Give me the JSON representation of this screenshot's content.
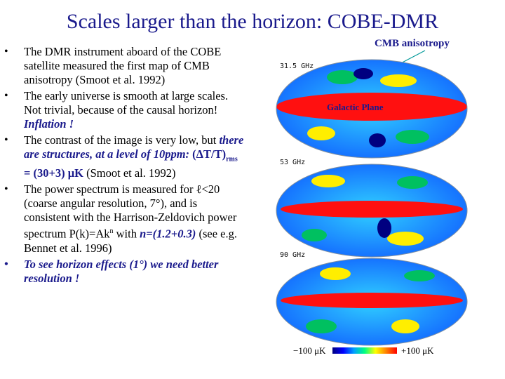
{
  "title": "Scales larger than the horizon: COBE-DMR",
  "bullets": {
    "b1": "The DMR instrument aboard of the COBE satellite measured the first map of CMB anisotropy (Smoot et al. 1992)",
    "b2_text": "The early universe is smooth at large scales. Not trivial, because of the causal horizon! ",
    "b2_em": "Inflation !",
    "b3_pre": "The contrast of the image is very low, but ",
    "b3_em": "there are structures, at a level of 10ppm: ",
    "b3_formula": "(ΔT/T)",
    "b3_sub": "rms",
    "b3_value": " = (30+3) μK",
    "b3_post": " (Smoot et al. 1992)",
    "b4_pre": "The power spectrum is measured for ℓ<20 (coarse angular resolution, 7°), and is consistent with the Harrison-Zeldovich power spectrum P(k)=Ak",
    "b4_sup": "n",
    "b4_mid": " with ",
    "b4_em": "n=(1.2+0.3)",
    "b4_post": " (see e.g. Bennet et al. 1996)",
    "b5": "To see horizon effects (1°) we need better resolution !"
  },
  "annotations": {
    "cmb": "CMB anisotropy",
    "galactic": "Galactic Plane"
  },
  "maps": [
    {
      "freq": "31.5 GHz"
    },
    {
      "freq": "53 GHz"
    },
    {
      "freq": "90 GHz"
    }
  ],
  "colorbar": {
    "min_label": "−100 μK",
    "max_label": "+100 μK"
  }
}
